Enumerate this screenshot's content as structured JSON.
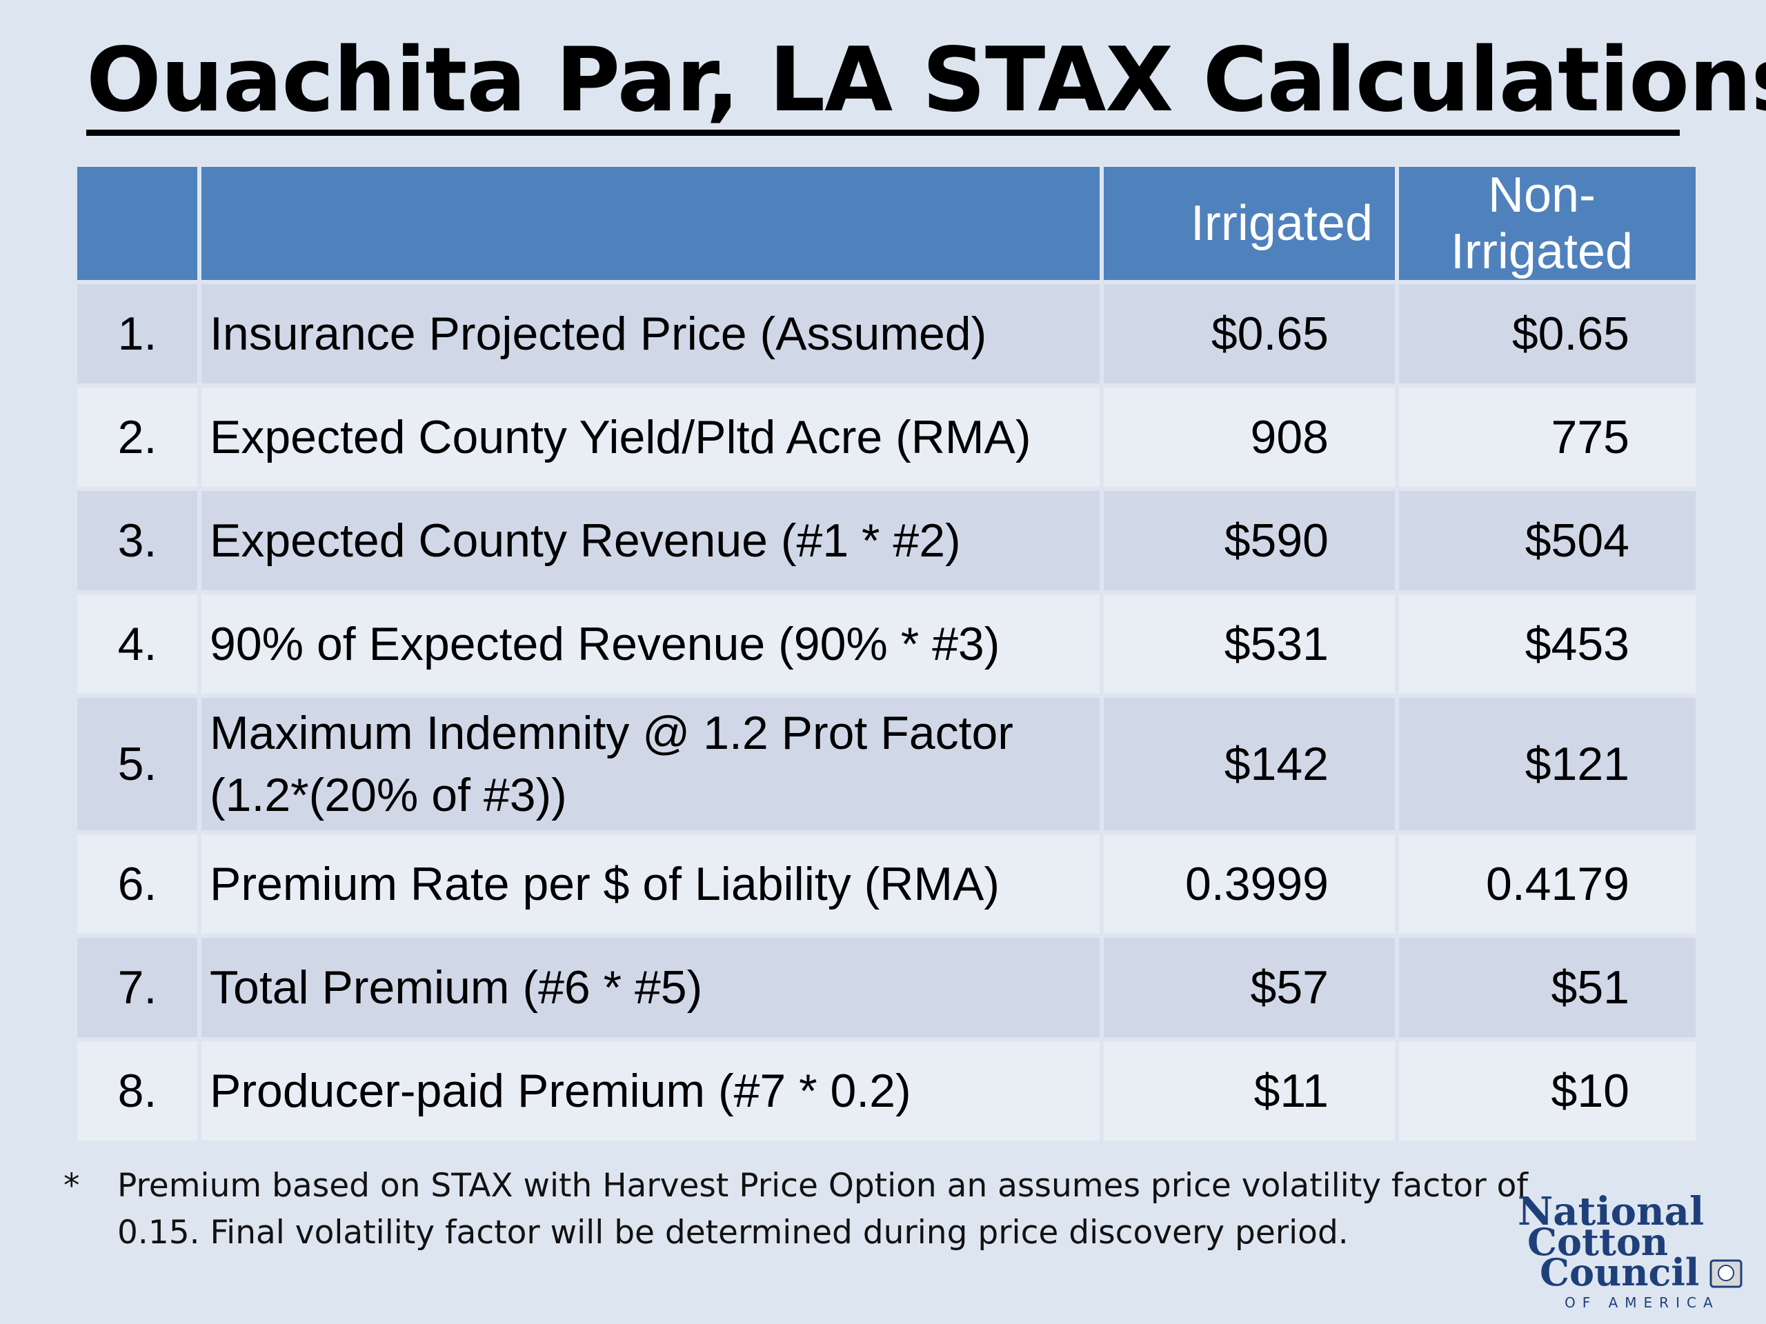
{
  "title": "Ouachita Par, LA STAX Calculations*",
  "table": {
    "headers": [
      "",
      "",
      "Irrigated",
      "Non-Irrigated"
    ],
    "rows": [
      {
        "num": "1.",
        "desc": "Insurance Projected Price (Assumed)",
        "irrigated": "$0.65",
        "non_irrigated": "$0.65"
      },
      {
        "num": "2.",
        "desc": "Expected County Yield/Pltd Acre (RMA)",
        "irrigated": "908",
        "non_irrigated": "775"
      },
      {
        "num": "3.",
        "desc": "Expected County Revenue (#1 * #2)",
        "irrigated": "$590",
        "non_irrigated": "$504"
      },
      {
        "num": "4.",
        "desc": "90% of Expected Revenue (90% * #3)",
        "irrigated": "$531",
        "non_irrigated": "$453"
      },
      {
        "num": "5.",
        "desc_line1": "Maximum Indemnity @ 1.2 Prot Factor",
        "desc_line2": "(1.2*(20% of #3))",
        "irrigated": "$142",
        "non_irrigated": "$121"
      },
      {
        "num": "6.",
        "desc": "Premium Rate per $ of Liability (RMA)",
        "irrigated": "0.3999",
        "non_irrigated": "0.4179"
      },
      {
        "num": "7.",
        "desc": "Total Premium (#6 * #5)",
        "irrigated": "$57",
        "non_irrigated": "$51"
      },
      {
        "num": "8.",
        "desc": "Producer-paid Premium (#7 * 0.2)",
        "irrigated": "$11",
        "non_irrigated": "$10"
      }
    ]
  },
  "footnote": {
    "marker": "*",
    "line1": "Premium based on STAX with Harvest Price Option an assumes price volatility factor of",
    "line2": "0.15. Final volatility factor will be determined during price discovery period."
  },
  "logo": {
    "line1": "National",
    "line2": "Cotton",
    "line3": "Council",
    "line4": "OF AMERICA",
    "color": "#1f3f7a"
  }
}
